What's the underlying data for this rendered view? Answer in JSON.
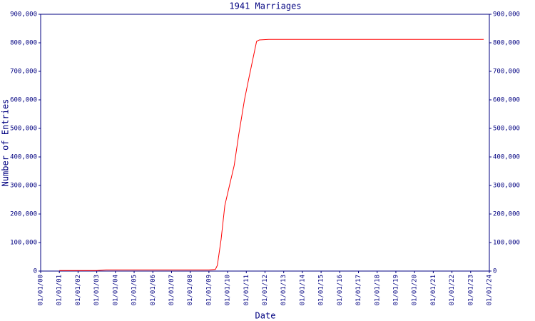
{
  "chart_data": {
    "type": "line",
    "title": "1941 Marriages",
    "x_label": "Date",
    "y_label": "Number of Entries",
    "x": [
      1.0,
      3.0,
      3.5,
      9.0,
      9.35,
      9.45,
      9.65,
      9.85,
      10.1,
      10.35,
      10.6,
      10.9,
      11.15,
      11.55,
      11.7,
      12.2,
      13.6,
      23.7
    ],
    "values": [
      2000,
      2000,
      4000,
      4000,
      6000,
      20000,
      110000,
      230000,
      300000,
      370000,
      480000,
      600000,
      680000,
      805000,
      810000,
      812000,
      812000,
      812000
    ],
    "color": "#ff0000",
    "axis_color": "#000080",
    "xlim": [
      0,
      24
    ],
    "xticks": [
      {
        "value": 0,
        "label": "01/01/00"
      },
      {
        "value": 1,
        "label": "01/01/01"
      },
      {
        "value": 2,
        "label": "01/01/02"
      },
      {
        "value": 3,
        "label": "01/01/03"
      },
      {
        "value": 4,
        "label": "01/01/04"
      },
      {
        "value": 5,
        "label": "01/01/05"
      },
      {
        "value": 6,
        "label": "01/01/06"
      },
      {
        "value": 7,
        "label": "01/01/07"
      },
      {
        "value": 8,
        "label": "01/01/08"
      },
      {
        "value": 9,
        "label": "01/01/09"
      },
      {
        "value": 10,
        "label": "01/01/10"
      },
      {
        "value": 11,
        "label": "01/01/11"
      },
      {
        "value": 12,
        "label": "01/01/12"
      },
      {
        "value": 13,
        "label": "01/01/13"
      },
      {
        "value": 14,
        "label": "01/01/14"
      },
      {
        "value": 15,
        "label": "01/01/15"
      },
      {
        "value": 16,
        "label": "01/01/16"
      },
      {
        "value": 17,
        "label": "01/01/17"
      },
      {
        "value": 18,
        "label": "01/01/18"
      },
      {
        "value": 19,
        "label": "01/01/19"
      },
      {
        "value": 20,
        "label": "01/01/20"
      },
      {
        "value": 21,
        "label": "01/01/21"
      },
      {
        "value": 22,
        "label": "01/01/22"
      },
      {
        "value": 23,
        "label": "01/01/23"
      },
      {
        "value": 24,
        "label": "01/01/24"
      }
    ],
    "ylim": [
      0,
      900000
    ],
    "yticks": [
      0,
      {
        "value": 100000,
        "label": "100,000"
      },
      {
        "value": 200000,
        "label": "200,000"
      },
      {
        "value": 300000,
        "label": "300,000"
      },
      {
        "value": 400000,
        "label": "400,000"
      },
      {
        "value": 500000,
        "label": "500,000"
      },
      {
        "value": 600000,
        "label": "600,000"
      },
      {
        "value": 700000,
        "label": "700,000"
      },
      {
        "value": 800000,
        "label": "800,000"
      },
      {
        "value": 900000,
        "label": "900,000"
      }
    ]
  }
}
